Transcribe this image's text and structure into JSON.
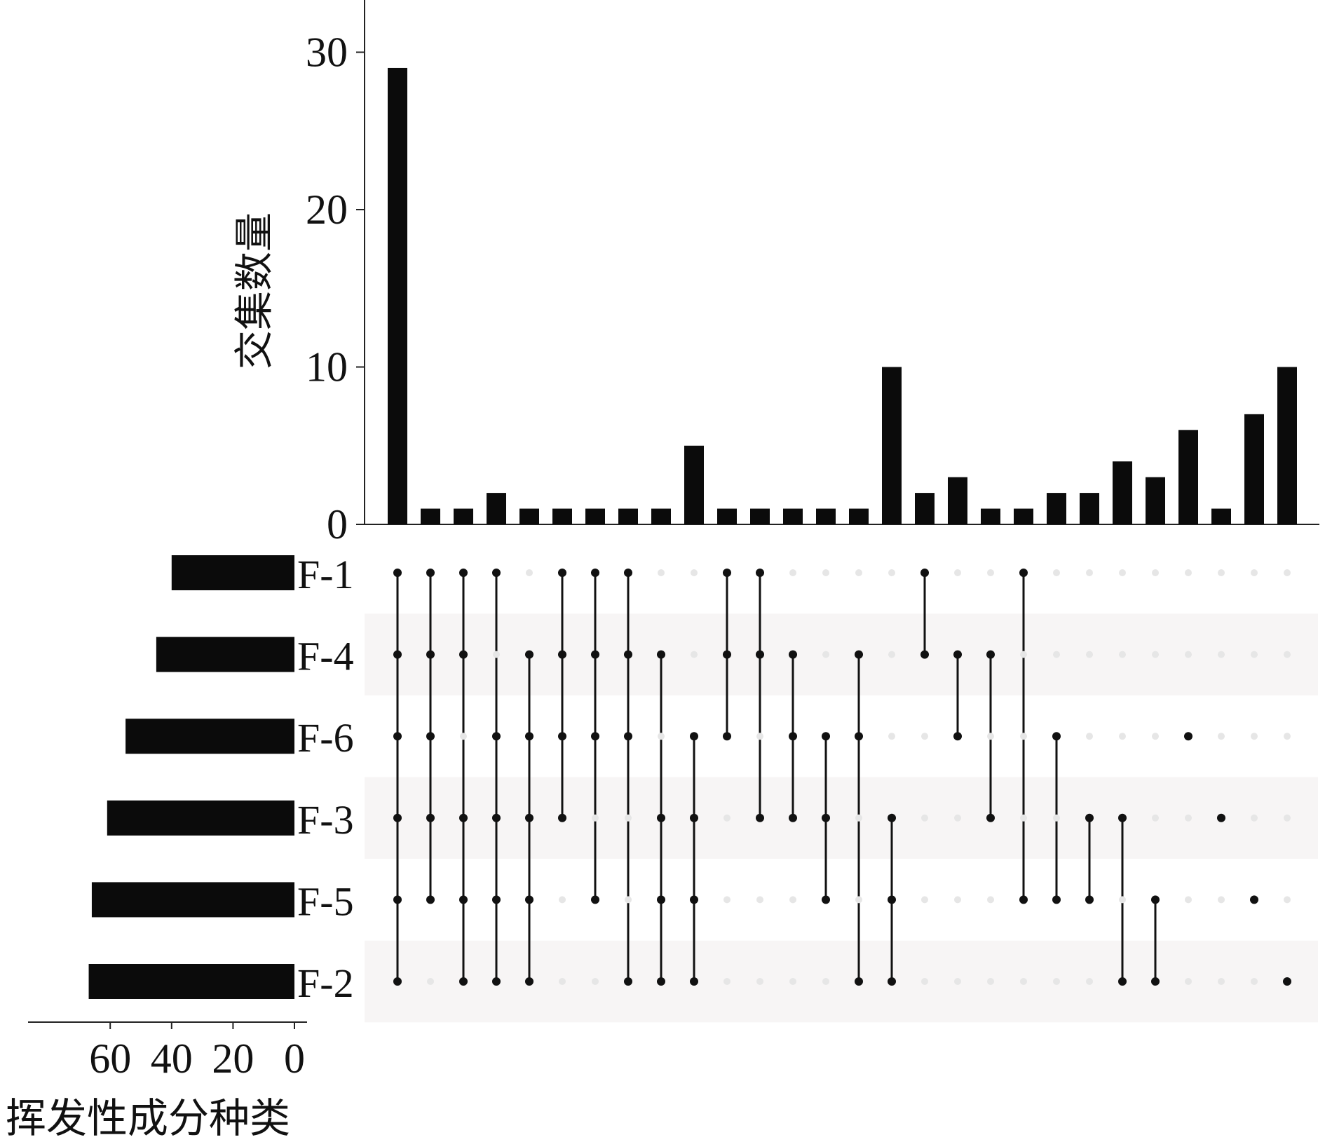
{
  "chart_data": {
    "type": "bar",
    "title": "",
    "intersection_bars": {
      "ylabel": "交集数量",
      "yticks": [
        0,
        10,
        20,
        30
      ],
      "ylim": [
        0,
        33.5
      ],
      "values": [
        29,
        1,
        1,
        2,
        1,
        1,
        1,
        1,
        1,
        5,
        1,
        1,
        1,
        1,
        1,
        10,
        2,
        3,
        1,
        1,
        2,
        2,
        4,
        3,
        6,
        1,
        7,
        10
      ]
    },
    "sets": {
      "xlabel": "挥发性成分种类",
      "xticks": [
        60,
        40,
        20,
        0
      ],
      "xlim": [
        0,
        72
      ],
      "names": [
        "F-1",
        "F-4",
        "F-6",
        "F-3",
        "F-5",
        "F-2"
      ],
      "sizes": [
        40,
        45,
        55,
        61,
        66,
        67
      ]
    },
    "combinations": [
      [
        "F-1",
        "F-4",
        "F-6",
        "F-3",
        "F-5",
        "F-2"
      ],
      [
        "F-1",
        "F-4",
        "F-6",
        "F-3",
        "F-5"
      ],
      [
        "F-1",
        "F-4",
        "F-3",
        "F-5",
        "F-2"
      ],
      [
        "F-1",
        "F-6",
        "F-3",
        "F-5",
        "F-2"
      ],
      [
        "F-4",
        "F-6",
        "F-3",
        "F-5",
        "F-2"
      ],
      [
        "F-1",
        "F-4",
        "F-6",
        "F-3"
      ],
      [
        "F-1",
        "F-4",
        "F-6",
        "F-5"
      ],
      [
        "F-1",
        "F-4",
        "F-6",
        "F-2"
      ],
      [
        "F-4",
        "F-3",
        "F-5",
        "F-2"
      ],
      [
        "F-6",
        "F-3",
        "F-5",
        "F-2"
      ],
      [
        "F-1",
        "F-4",
        "F-6"
      ],
      [
        "F-1",
        "F-4",
        "F-3"
      ],
      [
        "F-4",
        "F-6",
        "F-3"
      ],
      [
        "F-6",
        "F-3",
        "F-5"
      ],
      [
        "F-4",
        "F-6",
        "F-2"
      ],
      [
        "F-3",
        "F-5",
        "F-2"
      ],
      [
        "F-1",
        "F-4"
      ],
      [
        "F-4",
        "F-6"
      ],
      [
        "F-4",
        "F-3"
      ],
      [
        "F-1",
        "F-5"
      ],
      [
        "F-6",
        "F-5"
      ],
      [
        "F-3",
        "F-5"
      ],
      [
        "F-3",
        "F-2"
      ],
      [
        "F-5",
        "F-2"
      ],
      [
        "F-6"
      ],
      [
        "F-3"
      ],
      [
        "F-5"
      ],
      [
        "F-2"
      ]
    ],
    "colors": {
      "bar": "#0b0b0b",
      "dot_active": "#111111",
      "dot_inactive": "#e6e6e6",
      "stripe": "#f7f5f5"
    }
  }
}
